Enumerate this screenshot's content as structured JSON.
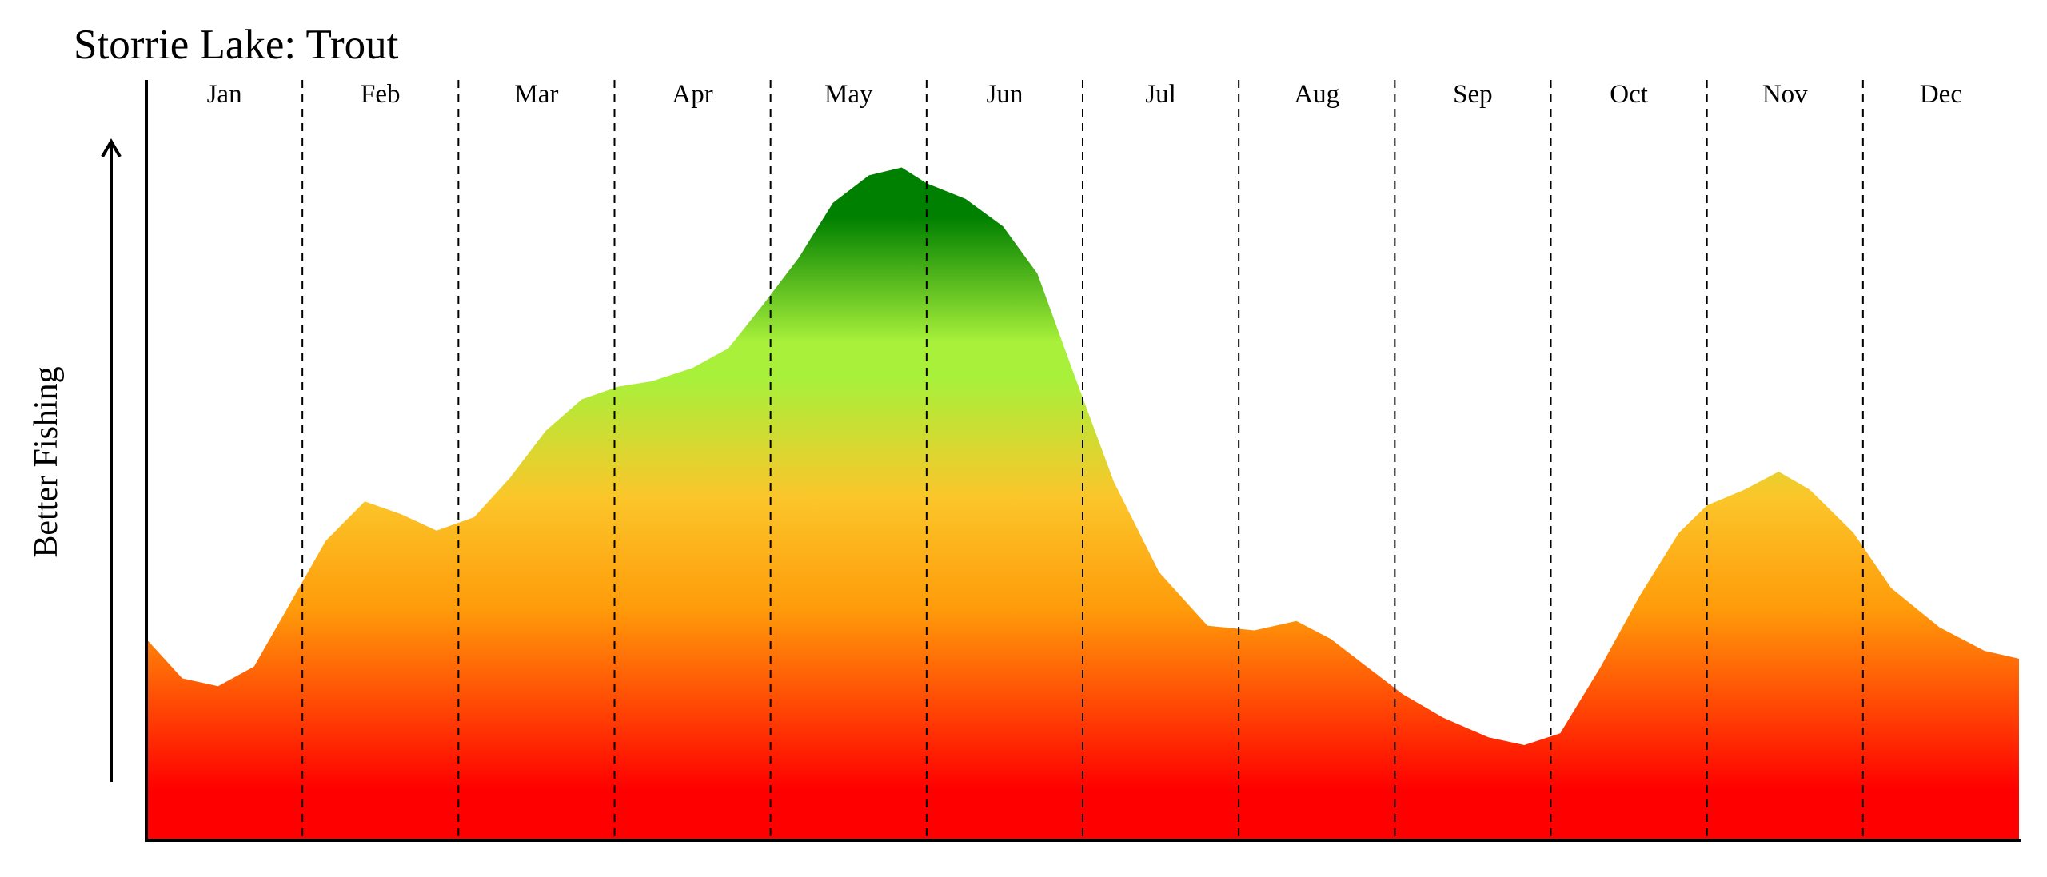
{
  "chart_data": {
    "type": "area",
    "title": "Storrie Lake: Trout",
    "xlabel": "",
    "ylabel": "Better Fishing",
    "months": [
      "Jan",
      "Feb",
      "Mar",
      "Apr",
      "May",
      "Jun",
      "Jul",
      "Aug",
      "Sep",
      "Oct",
      "Nov",
      "Dec"
    ],
    "x": [
      0,
      0.23,
      0.46,
      0.69,
      0.92,
      1.15,
      1.4,
      1.63,
      1.86,
      2.1,
      2.33,
      2.56,
      2.79,
      3.02,
      3.24,
      3.5,
      3.73,
      3.95,
      4.18,
      4.4,
      4.63,
      4.84,
      5.0,
      5.25,
      5.49,
      5.71,
      5.93,
      6.2,
      6.49,
      6.8,
      7.1,
      7.37,
      7.59,
      7.82,
      8.05,
      8.31,
      8.6,
      8.83,
      9.06,
      9.32,
      9.57,
      9.82,
      10.0,
      10.24,
      10.46,
      10.66,
      10.94,
      11.18,
      11.49,
      11.78,
      12.0
    ],
    "y": [
      0.255,
      0.205,
      0.195,
      0.22,
      0.3,
      0.38,
      0.43,
      0.414,
      0.393,
      0.41,
      0.46,
      0.52,
      0.56,
      0.576,
      0.583,
      0.6,
      0.625,
      0.68,
      0.74,
      0.81,
      0.845,
      0.855,
      0.835,
      0.815,
      0.78,
      0.72,
      0.6,
      0.455,
      0.34,
      0.272,
      0.266,
      0.278,
      0.255,
      0.22,
      0.185,
      0.155,
      0.13,
      0.12,
      0.135,
      0.22,
      0.31,
      0.39,
      0.425,
      0.445,
      0.468,
      0.445,
      0.39,
      0.32,
      0.27,
      0.24,
      0.23
    ],
    "ylim": [
      0,
      1
    ],
    "xlim": [
      0,
      12
    ],
    "gradient_colors": [
      "#ff0000",
      "#ff9b0a",
      "#fbc62a",
      "#a8f03a",
      "#008000"
    ],
    "grid": "dashed vertical lines between months"
  }
}
